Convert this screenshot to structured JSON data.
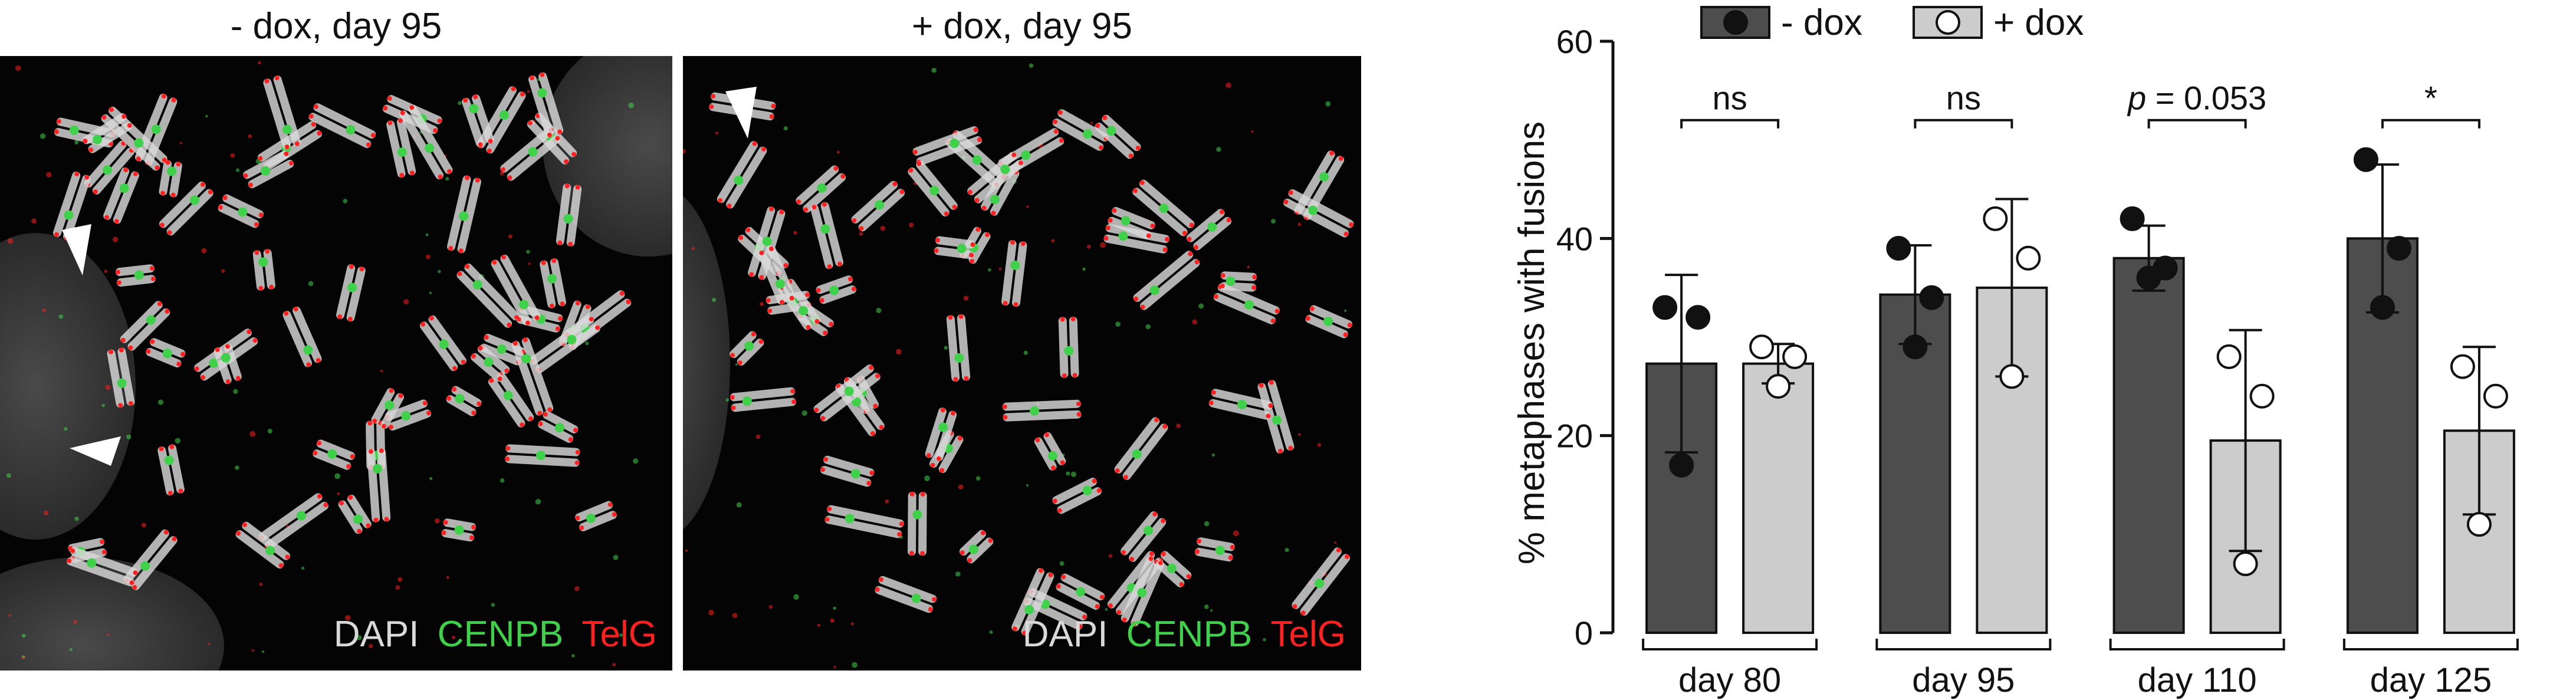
{
  "panels": {
    "left_title": "- dox, day 95",
    "right_title": "+ dox, day 95",
    "stain_dapi": "DAPI",
    "stain_cenpb": "CENPB",
    "stain_telg": "TelG",
    "colors": {
      "dapi": "#d9d9d9",
      "cenpb": "#3fd14a",
      "telg": "#ff2020",
      "background": "#040404"
    }
  },
  "chart_data": {
    "type": "bar",
    "ylabel": "% metaphases with fusions",
    "xlabel": "",
    "ylim": [
      0,
      60
    ],
    "yticks": [
      0,
      20,
      40,
      60
    ],
    "grid": false,
    "legend_position": "top",
    "categories": [
      "day 80",
      "day 95",
      "day 110",
      "day 125"
    ],
    "series": [
      {
        "name": "- dox",
        "color": "#4d4d4d",
        "marker": "filled-circle",
        "values": [
          27.3,
          34.3,
          38.0,
          40.0
        ],
        "error": [
          9.0,
          5.0,
          3.3,
          7.5
        ],
        "points": [
          [
            33.0,
            32.0,
            17.0
          ],
          [
            39.0,
            34.0,
            29.0
          ],
          [
            42.0,
            37.0,
            36.0
          ],
          [
            48.0,
            39.0,
            33.0
          ]
        ]
      },
      {
        "name": "+ dox",
        "color": "#cccccc",
        "marker": "open-circle",
        "values": [
          27.3,
          35.0,
          19.5,
          20.5
        ],
        "error": [
          2.0,
          9.0,
          11.2,
          8.5
        ],
        "points": [
          [
            29.0,
            28.0,
            25.0
          ],
          [
            42.0,
            38.0,
            26.0
          ],
          [
            28.0,
            24.0,
            7.0
          ],
          [
            27.0,
            24.0,
            11.0
          ]
        ]
      }
    ],
    "annotations": [
      {
        "category": "day 80",
        "text": "ns",
        "italic": false
      },
      {
        "category": "day 95",
        "text": "ns",
        "italic": false
      },
      {
        "category": "day 110",
        "text_italic": "p",
        "text": " = 0.053"
      },
      {
        "category": "day 125",
        "text": "*",
        "italic": false
      }
    ]
  }
}
